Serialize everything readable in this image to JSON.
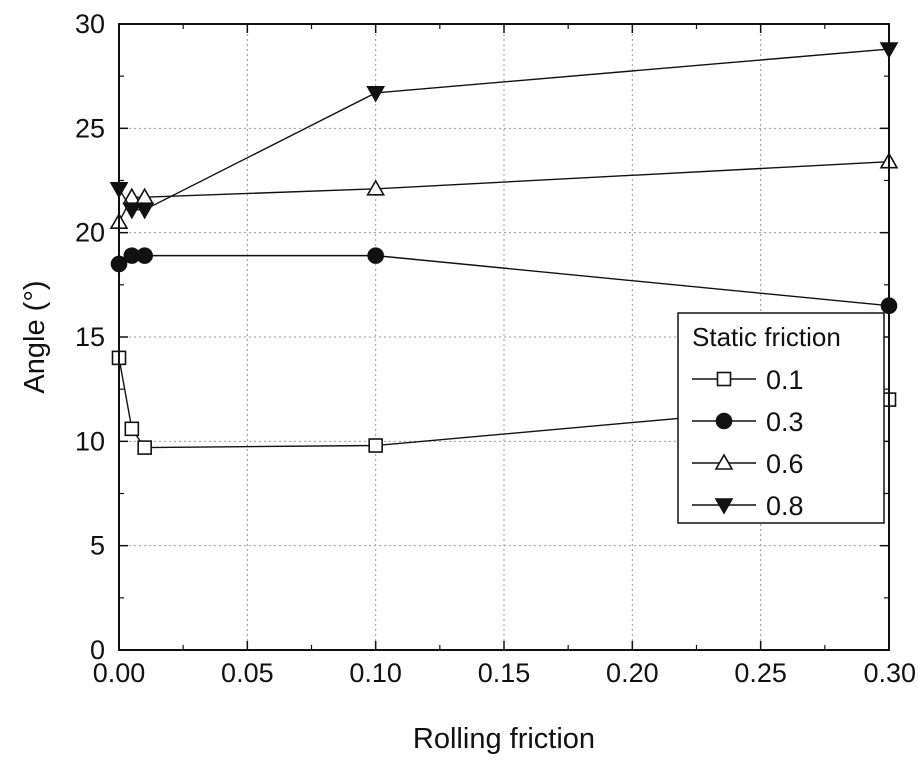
{
  "chart_data": {
    "type": "line",
    "xlabel": "Rolling friction",
    "ylabel": "Angle (°)",
    "xlim": [
      0,
      0.3
    ],
    "ylim": [
      0,
      30
    ],
    "xticks": [
      "0.00",
      "0.05",
      "0.10",
      "0.15",
      "0.20",
      "0.25",
      "0.30"
    ],
    "yticks": [
      "0",
      "5",
      "10",
      "15",
      "20",
      "25",
      "30"
    ],
    "grid": true,
    "legend": {
      "title": "Static friction",
      "placement": "right"
    },
    "x": [
      0,
      0.005,
      0.01,
      0.1,
      0.3
    ],
    "series": [
      {
        "name": "0.1",
        "marker": "open-square",
        "values": [
          14.0,
          10.6,
          9.7,
          9.8,
          12.0
        ]
      },
      {
        "name": "0.3",
        "marker": "filled-circle",
        "values": [
          18.5,
          18.9,
          18.9,
          18.9,
          16.5
        ]
      },
      {
        "name": "0.6",
        "marker": "open-triangle-up",
        "values": [
          20.5,
          21.7,
          21.7,
          22.1,
          23.4
        ]
      },
      {
        "name": "0.8",
        "marker": "filled-triangle-down",
        "values": [
          22.1,
          21.1,
          21.1,
          26.7,
          28.8
        ]
      }
    ]
  }
}
